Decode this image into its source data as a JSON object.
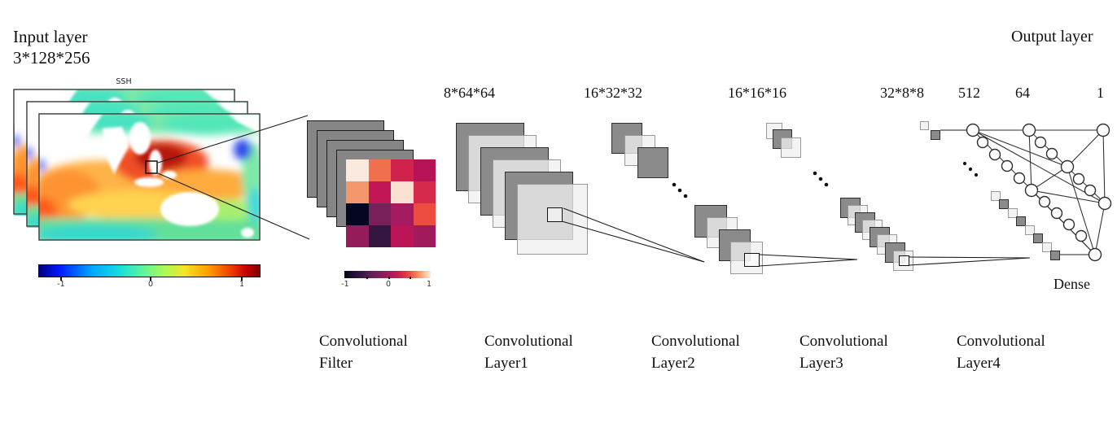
{
  "labels": {
    "input_layer": "Input layer",
    "input_dims": "3*128*256",
    "ssh": "SSH",
    "output_layer": "Output layer",
    "dense": "Dense"
  },
  "layer_dims": {
    "conv1": "8*64*64",
    "conv2": "16*32*32",
    "conv3": "16*16*16",
    "conv4": "32*8*8",
    "fc1": "512",
    "fc2": "64",
    "out": "1"
  },
  "bottom_labels": [
    {
      "line1": "Convolutional",
      "line2": "Filter"
    },
    {
      "line1": "Convolutional",
      "line2": "Layer1"
    },
    {
      "line1": "Convolutional",
      "line2": "Layer2"
    },
    {
      "line1": "Convolutional",
      "line2": "Layer3"
    },
    {
      "line1": "Convolutional",
      "line2": "Layer4"
    }
  ],
  "colorbars": {
    "input": {
      "ticks": [
        "-1",
        "0",
        "1"
      ],
      "gradient": [
        "#00007f 0%",
        "#0018ff 9%",
        "#00a8ff 24%",
        "#17e0d8 37%",
        "#5ef49c 47%",
        "#aef955 57%",
        "#f6e326 66%",
        "#ff9b00 77%",
        "#f03c00 87%",
        "#c40000 94%",
        "#7f0000 100%"
      ]
    },
    "filter": {
      "ticks": [
        "-1",
        "0",
        "1"
      ],
      "gradient": [
        "#03051a 0%",
        "#2c1340 16%",
        "#62205a 32%",
        "#a3195e 50%",
        "#cb1b52 62%",
        "#e9423e 74%",
        "#f58860 85%",
        "#f9c8a0 94%",
        "#fbece0 100%"
      ]
    }
  },
  "filter_heatmap": {
    "rows": 4,
    "cols": 4,
    "colors": [
      [
        "#fae9dc",
        "#f0704e",
        "#d2224b",
        "#b61356"
      ],
      [
        "#f4976d",
        "#c11757",
        "#f9e0d0",
        "#d62a4b"
      ],
      [
        "#050721",
        "#78205a",
        "#a31a60",
        "#ed4c41"
      ],
      [
        "#951c5b",
        "#331540",
        "#bb1557",
        "#a01a5c"
      ]
    ]
  },
  "colors": {
    "dark_feature_map": "#8b8b8b",
    "light_feature_map": "#f0f0f0",
    "line": "#1c1c1c",
    "node_fill": "#ffffff",
    "node_stroke": "#2e2e2e"
  }
}
